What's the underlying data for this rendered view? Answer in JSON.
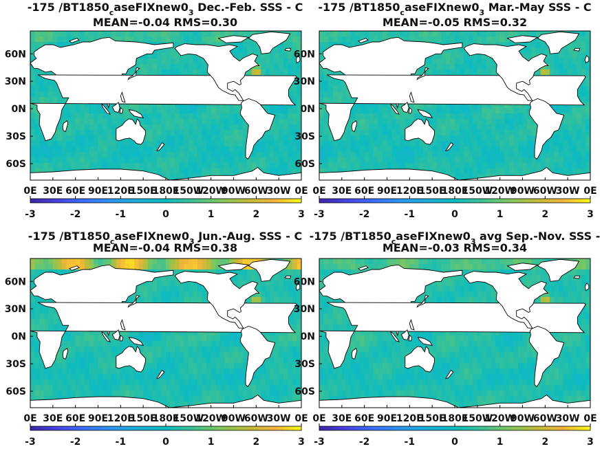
{
  "chart_data": [
    {
      "type": "heatmap",
      "title_line1": "-175 /BT1850",
      "title_sub": "c",
      "title_mid": "aseFIXnew0",
      "title_sub2": "3",
      "title_tail": "Dec.-Feb. SSS - C",
      "title_stats": "MEAN=-0.04   RMS=0.30",
      "mean": -0.04,
      "rms": 0.3,
      "season": "Dec.-Feb.",
      "xticks": [
        "0E",
        "30E",
        "60E",
        "90E",
        "120E",
        "150E",
        "180E",
        "150W",
        "120W",
        "90W",
        "60W",
        "30W",
        "0E"
      ],
      "yticks": [
        "60N",
        "30N",
        "0N",
        "30S",
        "60S"
      ],
      "clim": [
        -3,
        3
      ],
      "cticks": [
        "-3",
        "-2",
        "-1",
        "0",
        "1",
        "2",
        "3"
      ],
      "arctic_anomaly": 0.3,
      "gulfstream_anomaly": 2.0
    },
    {
      "type": "heatmap",
      "title_line1": "-175 /BT1850",
      "title_sub": "c",
      "title_mid": "aseFIXnew0",
      "title_sub2": "3",
      "title_tail": "Mar.-May SSS - C",
      "title_stats": "MEAN=-0.05   RMS=0.32",
      "mean": -0.05,
      "rms": 0.32,
      "season": "Mar.-May",
      "xticks": [
        "0E",
        "30E",
        "60E",
        "90E",
        "120E",
        "150E",
        "180E",
        "150W",
        "120W",
        "90W",
        "60W",
        "30W",
        "0E"
      ],
      "yticks": [
        "60N",
        "30N",
        "0N",
        "30S",
        "60S"
      ],
      "clim": [
        -3,
        3
      ],
      "cticks": [
        "-3",
        "-2",
        "-1",
        "0",
        "1",
        "2",
        "3"
      ],
      "arctic_anomaly": 0.2,
      "gulfstream_anomaly": 1.7
    },
    {
      "type": "heatmap",
      "title_line1": "-175 /BT1850",
      "title_sub": "c",
      "title_mid": "aseFIXnew0",
      "title_sub2": "3",
      "title_tail": "Jun.-Aug. SSS - C",
      "title_stats": "MEAN=-0.04   RMS=0.38",
      "mean": -0.04,
      "rms": 0.38,
      "season": "Jun.-Aug.",
      "xticks": [
        "0E",
        "30E",
        "60E",
        "90E",
        "120E",
        "150E",
        "180E",
        "150W",
        "120W",
        "90W",
        "60W",
        "30W",
        "0E"
      ],
      "yticks": [
        "60N",
        "30N",
        "0N",
        "30S",
        "60S"
      ],
      "clim": [
        -3,
        3
      ],
      "cticks": [
        "-3",
        "-2",
        "-1",
        "0",
        "1",
        "2",
        "3"
      ],
      "arctic_anomaly": 2.3,
      "gulfstream_anomaly": 1.8
    },
    {
      "type": "heatmap",
      "title_line1": "-175 /BT1850",
      "title_sub": "c",
      "title_mid": "aseFIXnew0",
      "title_sub2": "3",
      "title_tail": "avg Sep.-Nov. SSS -",
      "title_stats": "MEAN=-0.03   RMS=0.34",
      "mean": -0.03,
      "rms": 0.34,
      "season": "Sep.-Nov.",
      "xticks": [
        "0E",
        "30E",
        "60E",
        "90E",
        "120E",
        "150E",
        "180E",
        "150W",
        "120W",
        "90W",
        "60W",
        "30W",
        "0E"
      ],
      "yticks": [
        "60N",
        "30N",
        "0N",
        "30S",
        "60S"
      ],
      "clim": [
        -3,
        3
      ],
      "cticks": [
        "-3",
        "-2",
        "-1",
        "0",
        "1",
        "2",
        "3"
      ],
      "arctic_anomaly": 0.6,
      "gulfstream_anomaly": 1.6
    }
  ],
  "colormap": [
    "#3e26a8",
    "#4743e2",
    "#3b6ffb",
    "#2b97ef",
    "#1caed8",
    "#0ebbbe",
    "#3dc294",
    "#7fc75e",
    "#c0bc38",
    "#f0b43b",
    "#fbd82a",
    "#f9fb15"
  ]
}
